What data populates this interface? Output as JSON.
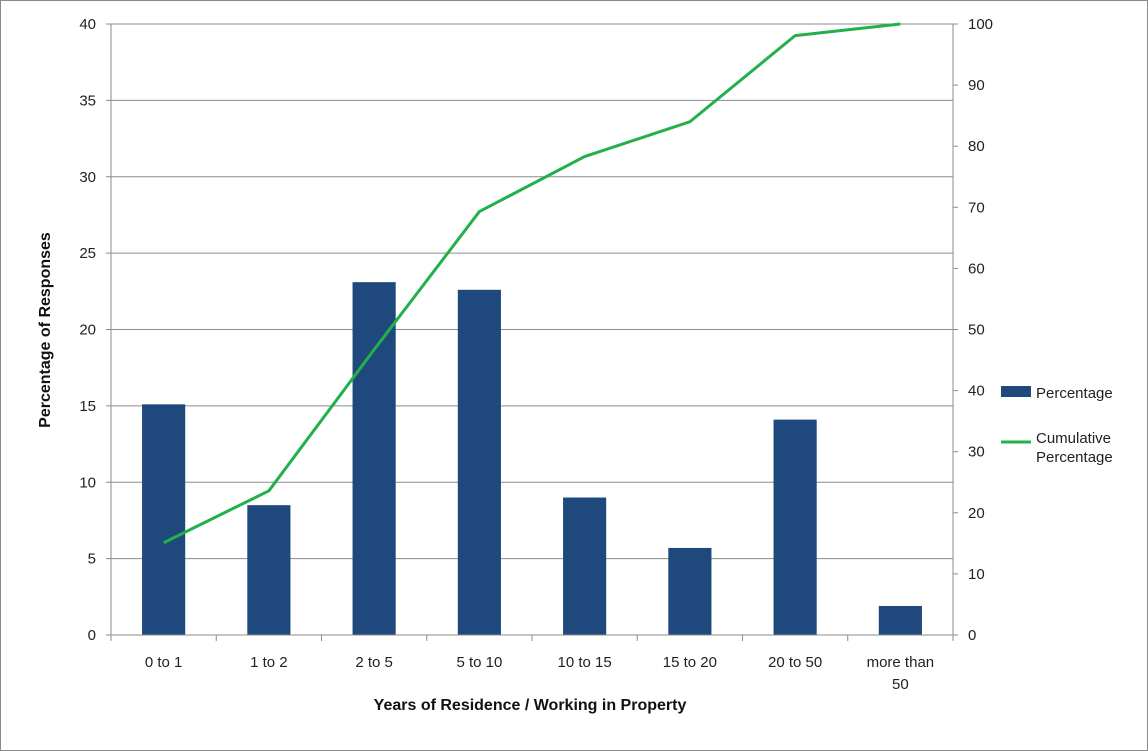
{
  "chart_data": {
    "type": "bar",
    "title": "",
    "categories": [
      [
        "0 to 1"
      ],
      [
        "1 to 2"
      ],
      [
        "2 to 5"
      ],
      [
        "5 to 10"
      ],
      [
        "10 to 15"
      ],
      [
        "15 to 20"
      ],
      [
        "20 to 50"
      ],
      [
        "more than",
        "50"
      ]
    ],
    "series": [
      {
        "name": "Percentage",
        "type": "bar",
        "axis": "left",
        "color": "#1f497d",
        "values": [
          15.1,
          8.5,
          23.1,
          22.6,
          9.0,
          5.7,
          14.1,
          1.9
        ]
      },
      {
        "name": "Cumulative Percentage",
        "legend_lines": [
          "Cumulative",
          "Percentage"
        ],
        "type": "line",
        "axis": "right",
        "color": "#22b04b",
        "values": [
          15.1,
          23.6,
          46.7,
          69.3,
          78.3,
          84.0,
          98.1,
          100.0
        ]
      }
    ],
    "xlabel": "Years of Residence / Working in Property",
    "ylabel": "Percentage of Responses",
    "ylim": [
      0,
      40
    ],
    "y_ticks": [
      "0",
      "5",
      "10",
      "15",
      "20",
      "25",
      "30",
      "35",
      "40"
    ],
    "y2lim": [
      0,
      100
    ],
    "y2_ticks": [
      "0",
      "10",
      "20",
      "30",
      "40",
      "50",
      "60",
      "70",
      "80",
      "90",
      "100"
    ],
    "grid": "horizontal",
    "legend_position": "right"
  }
}
